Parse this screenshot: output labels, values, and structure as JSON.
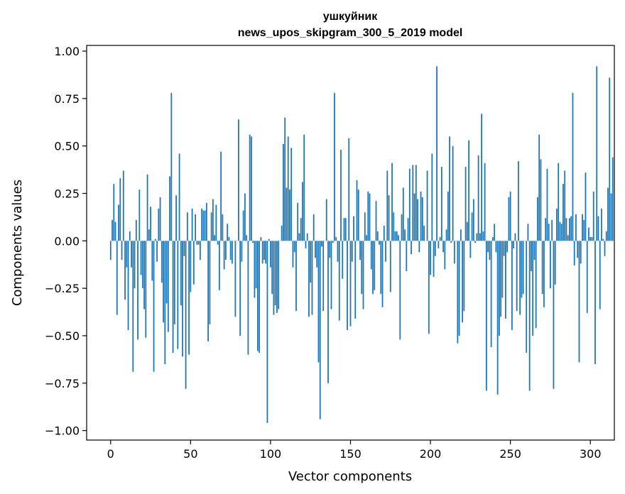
{
  "chart_data": {
    "type": "bar",
    "title": "ушкуйник",
    "subtitle": "news_upos_skipgram_300_5_2019 model",
    "xlabel": "Vector components",
    "ylabel": "Components values",
    "xlim": [
      -15,
      315
    ],
    "ylim": [
      -1.05,
      1.03
    ],
    "xticks": [
      0,
      50,
      100,
      150,
      200,
      250,
      300
    ],
    "yticks": [
      -1.0,
      -0.75,
      -0.5,
      -0.25,
      0.0,
      0.25,
      0.5,
      0.75,
      1.0
    ],
    "ytick_labels": [
      "−1.00",
      "−0.75",
      "−0.50",
      "−0.25",
      "0.00",
      "0.25",
      "0.50",
      "0.75",
      "1.00"
    ],
    "xtick_labels": [
      "0",
      "50",
      "100",
      "150",
      "200",
      "250",
      "300"
    ],
    "bar_color": "#1f77b4",
    "values": [
      -0.1,
      0.11,
      0.3,
      0.1,
      -0.39,
      0.19,
      0.33,
      -0.1,
      0.37,
      -0.31,
      -0.14,
      -0.47,
      0.05,
      -0.14,
      -0.69,
      -0.25,
      0.11,
      -0.52,
      0.27,
      -0.18,
      -0.25,
      -0.36,
      -0.51,
      0.35,
      0.06,
      0.18,
      -0.21,
      -0.69,
      0.01,
      -0.11,
      0.17,
      0.23,
      -0.22,
      -0.43,
      -0.65,
      -0.33,
      -0.48,
      0.34,
      0.78,
      -0.59,
      -0.44,
      0.24,
      -0.57,
      0.46,
      -0.34,
      -0.61,
      -0.08,
      -0.78,
      0.15,
      -0.6,
      -0.27,
      0.17,
      -0.23,
      0.14,
      -0.02,
      -0.02,
      -0.1,
      0.17,
      0.16,
      0.16,
      0.2,
      -0.53,
      -0.44,
      0.15,
      0.22,
      0.03,
      0.19,
      -0.02,
      -0.26,
      0.47,
      0.14,
      -0.15,
      -0.1,
      0.09,
      0.02,
      -0.1,
      -0.12,
      0.0,
      -0.4,
      0.0,
      0.64,
      -0.5,
      -0.11,
      0.16,
      0.25,
      0.03,
      -0.6,
      0.56,
      0.55,
      -0.01,
      -0.3,
      -0.25,
      -0.58,
      -0.59,
      0.02,
      -0.12,
      -0.1,
      -0.12,
      -0.96,
      0.01,
      -0.14,
      -0.28,
      -0.39,
      -0.34,
      -0.38,
      -0.36,
      0.0,
      0.08,
      0.51,
      0.65,
      0.28,
      0.55,
      0.27,
      0.49,
      -0.14,
      -0.06,
      -0.37,
      0.2,
      0.04,
      0.12,
      0.31,
      0.56,
      -0.04,
      0.04,
      -0.4,
      -0.22,
      -0.39,
      0.14,
      -0.09,
      -0.14,
      -0.64,
      -0.94,
      -0.03,
      -0.37,
      0.0,
      0.22,
      -0.75,
      -0.09,
      -0.36,
      -0.01,
      0.78,
      0.02,
      -0.11,
      -0.42,
      0.48,
      -0.2,
      0.12,
      0.12,
      -0.47,
      0.54,
      -0.45,
      -0.11,
      0.13,
      -0.41,
      0.32,
      0.27,
      -0.1,
      -0.28,
      -0.36,
      0.15,
      0.03,
      0.26,
      0.25,
      -0.15,
      -0.28,
      -0.26,
      0.21,
      0.05,
      -0.02,
      -0.28,
      -0.35,
      0.08,
      -0.11,
      0.37,
      0.24,
      -0.27,
      0.41,
      0.15,
      0.05,
      0.05,
      0.03,
      -0.52,
      0.14,
      0.28,
      0.06,
      -0.16,
      0.12,
      0.38,
      -0.07,
      0.4,
      0.25,
      0.4,
      0.22,
      -0.06,
      0.26,
      0.23,
      0.08,
      0.0,
      0.37,
      -0.49,
      -0.18,
      0.46,
      -0.19,
      -0.08,
      0.92,
      -0.04,
      0.02,
      0.39,
      -0.06,
      -0.15,
      0.06,
      0.26,
      0.55,
      -0.01,
      0.5,
      -0.12,
      0.0,
      -0.54,
      -0.5,
      0.06,
      -0.43,
      -0.37,
      0.39,
      0.1,
      0.53,
      -0.09,
      0.15,
      0.22,
      -0.01,
      0.04,
      0.45,
      0.04,
      0.67,
      0.05,
      0.41,
      -0.79,
      -0.06,
      -0.1,
      -0.56,
      0.02,
      0.09,
      -0.06,
      -0.81,
      -0.5,
      -0.4,
      -0.3,
      -0.08,
      -0.41,
      -0.06,
      0.23,
      0.26,
      -0.47,
      -0.04,
      0.04,
      -0.37,
      0.42,
      -0.39,
      -0.3,
      -0.28,
      0.0,
      -0.59,
      0.09,
      -0.79,
      -0.16,
      -0.5,
      -0.1,
      -0.46,
      0.23,
      0.56,
      0.43,
      -0.28,
      -0.35,
      0.12,
      0.38,
      0.09,
      -0.25,
      0.11,
      -0.78,
      -0.23,
      0.17,
      0.41,
      0.1,
      0.09,
      0.3,
      0.37,
      0.12,
      0.03,
      0.12,
      0.13,
      0.78,
      -0.13,
      0.14,
      -0.09,
      -0.64,
      -0.12,
      0.14,
      0.11,
      0.36,
      -0.38,
      0.07,
      0.02,
      0.02,
      0.26,
      -0.65,
      0.92,
      0.13,
      -0.36,
      0.17,
      0.01,
      -0.08,
      0.05,
      0.28,
      0.86,
      0.25,
      0.44
    ]
  }
}
